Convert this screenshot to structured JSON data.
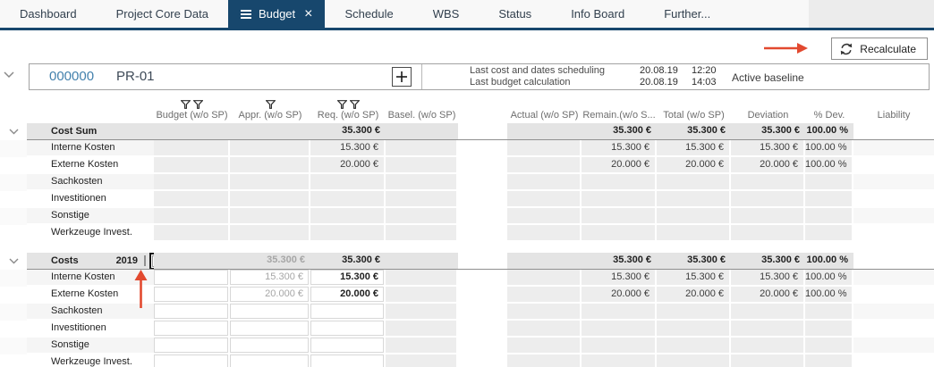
{
  "tab_bar": {
    "tabs": [
      {
        "id": "dashboard",
        "label": "Dashboard",
        "active": false
      },
      {
        "id": "project-core-data",
        "label": "Project Core Data",
        "active": false
      },
      {
        "id": "budget",
        "label": "Budget",
        "active": true
      },
      {
        "id": "schedule",
        "label": "Schedule",
        "active": false
      },
      {
        "id": "wbs",
        "label": "WBS",
        "active": false
      },
      {
        "id": "status",
        "label": "Status",
        "active": false
      },
      {
        "id": "info-board",
        "label": "Info Board",
        "active": false
      },
      {
        "id": "further",
        "label": "Further...",
        "active": false
      }
    ]
  },
  "toolbar": {
    "recalculate_label": "Recalculate"
  },
  "project_header": {
    "id": "000000",
    "code": "PR-01",
    "info_rows": [
      {
        "label": "Last cost and dates scheduling",
        "date": "20.08.19",
        "time": "12:20"
      },
      {
        "label": "Last budget calculation",
        "date": "20.08.19",
        "time": "14:03"
      }
    ],
    "baseline_label": "Active baseline"
  },
  "icons": {
    "active_tab_menu": "menu-icon",
    "tab_close": "close-icon",
    "recalculate": "refresh-icon",
    "add": "plus-icon",
    "column_filter": "funnel-icon",
    "expand": "chevron-down-icon",
    "checked": "checkmark-icon"
  },
  "colors": {
    "accent_navy": "#17476d",
    "annotation_red": "#e2492f",
    "project_id_blue": "#4381ad",
    "group_row_bg": "#e4e4e4",
    "readonly_cell_bg": "#ededed"
  },
  "budget_table": {
    "columns": [
      {
        "key": "budget",
        "label": "Budget (w/o SP)",
        "filter_icons": 2
      },
      {
        "key": "appr",
        "label": "Appr. (w/o SP)",
        "filter_icons": 1
      },
      {
        "key": "req",
        "label": "Req. (w/o SP)",
        "filter_icons": 2
      },
      {
        "key": "basel",
        "label": "Basel. (w/o SP)",
        "filter_icons": 0
      },
      {
        "key": "actual",
        "label": "Actual (w/o SP)",
        "filter_icons": 0
      },
      {
        "key": "remain",
        "label": "Remain.(w/o S...",
        "filter_icons": 0
      },
      {
        "key": "total",
        "label": "Total (w/o SP)",
        "filter_icons": 0
      },
      {
        "key": "deviation",
        "label": "Deviation",
        "filter_icons": 0
      },
      {
        "key": "pdev",
        "label": "% Dev.",
        "filter_icons": 0
      },
      {
        "key": "liability",
        "label": "Liability",
        "filter_icons": 0
      }
    ],
    "groups": [
      {
        "label": "Cost Sum",
        "year": null,
        "has_checkboxes": false,
        "editable": false,
        "values": {
          "req": "35.300 €",
          "remain": "35.300 €",
          "total": "35.300 €",
          "deviation": "35.300 €",
          "pdev": "100.00 %"
        },
        "rows": [
          {
            "label": "Interne Kosten",
            "values": {
              "req": "15.300 €",
              "remain": "15.300 €",
              "total": "15.300 €",
              "deviation": "15.300 €",
              "pdev": "100.00 %"
            }
          },
          {
            "label": "Externe Kosten",
            "values": {
              "req": "20.000 €",
              "remain": "20.000 €",
              "total": "20.000 €",
              "deviation": "20.000 €",
              "pdev": "100.00 %"
            }
          },
          {
            "label": "Sachkosten",
            "values": {}
          },
          {
            "label": "Investitionen",
            "values": {}
          },
          {
            "label": "Sonstige",
            "values": {}
          },
          {
            "label": "Werkzeuge Invest.",
            "values": {}
          }
        ]
      },
      {
        "label": "Costs",
        "year": "2019",
        "has_checkboxes": true,
        "editable": true,
        "checkbox_unchecked": false,
        "checkbox_checked": true,
        "values": {
          "appr": "35.300 €",
          "req": "35.300 €",
          "remain": "35.300 €",
          "total": "35.300 €",
          "deviation": "35.300 €",
          "pdev": "100.00 %"
        },
        "rows": [
          {
            "label": "Interne Kosten",
            "values": {
              "appr": "15.300 €",
              "req": "15.300 €",
              "remain": "15.300 €",
              "total": "15.300 €",
              "deviation": "15.300 €",
              "pdev": "100.00 %"
            }
          },
          {
            "label": "Externe Kosten",
            "values": {
              "appr": "20.000 €",
              "req": "20.000 €",
              "remain": "20.000 €",
              "total": "20.000 €",
              "deviation": "20.000 €",
              "pdev": "100.00 %"
            }
          },
          {
            "label": "Sachkosten",
            "values": {}
          },
          {
            "label": "Investitionen",
            "values": {}
          },
          {
            "label": "Sonstige",
            "values": {}
          },
          {
            "label": "Werkzeuge Invest.",
            "values": {}
          }
        ]
      }
    ]
  }
}
